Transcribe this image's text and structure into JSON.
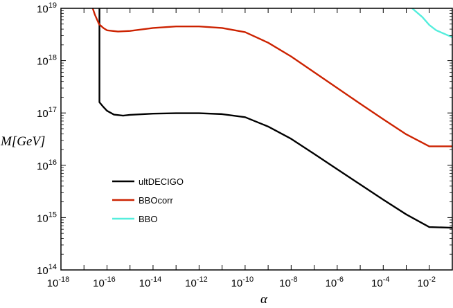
{
  "chart_data": {
    "type": "line",
    "title": "",
    "xlabel": "α",
    "ylabel": "M[GeV]",
    "xscale": "log",
    "yscale": "log",
    "xlim": [
      1e-18,
      0.1
    ],
    "ylim": [
      100000000000000.0,
      1e+19
    ],
    "grid": false,
    "legend_position": "lower-left",
    "x_tick_labels": [
      {
        "base": "10",
        "exp": "-18"
      },
      {
        "base": "10",
        "exp": "-16"
      },
      {
        "base": "10",
        "exp": "-14"
      },
      {
        "base": "10",
        "exp": "-12"
      },
      {
        "base": "10",
        "exp": "-10"
      },
      {
        "base": "10",
        "exp": "-8"
      },
      {
        "base": "10",
        "exp": "-6"
      },
      {
        "base": "10",
        "exp": "-4"
      },
      {
        "base": "10",
        "exp": "-2"
      }
    ],
    "y_tick_labels": [
      {
        "base": "10",
        "exp": "14"
      },
      {
        "base": "10",
        "exp": "15"
      },
      {
        "base": "10",
        "exp": "16"
      },
      {
        "base": "10",
        "exp": "17"
      },
      {
        "base": "10",
        "exp": "18"
      },
      {
        "base": "10",
        "exp": "19"
      }
    ],
    "series": [
      {
        "name": "ultDECIGO",
        "color": "#000000",
        "points": [
          [
            4.7e-17,
            1e+19
          ],
          [
            4.7e-17,
            1.6e+17
          ],
          [
            7e-17,
            1.3e+17
          ],
          [
            1e-16,
            1.1e+17
          ],
          [
            2e-16,
            9.3e+16
          ],
          [
            5e-16,
            8.9e+16
          ],
          [
            1e-15,
            9.2e+16
          ],
          [
            1e-14,
            9.7e+16
          ],
          [
            1e-13,
            9.9e+16
          ],
          [
            1e-12,
            9.9e+16
          ],
          [
            1e-11,
            9.5e+16
          ],
          [
            1e-10,
            8.3e+16
          ],
          [
            1e-09,
            5.5e+16
          ],
          [
            1e-08,
            3.2e+16
          ],
          [
            1e-07,
            1.65e+16
          ],
          [
            1e-06,
            8400000000000000.0
          ],
          [
            1e-05,
            4300000000000000.0
          ],
          [
            0.0001,
            2200000000000000.0
          ],
          [
            0.001,
            1150000000000000.0
          ],
          [
            0.01,
            660000000000000.0
          ],
          [
            0.1,
            640000000000000.0
          ]
        ]
      },
      {
        "name": "BBOcorr",
        "color": "#cc2200",
        "points": [
          [
            2.4e-17,
            1e+19
          ],
          [
            3e-17,
            7.5e+18
          ],
          [
            4.5e-17,
            5e+18
          ],
          [
            7e-17,
            4.2e+18
          ],
          [
            1e-16,
            3.8e+18
          ],
          [
            3e-16,
            3.6e+18
          ],
          [
            1e-15,
            3.7e+18
          ],
          [
            1e-14,
            4.2e+18
          ],
          [
            1e-13,
            4.5e+18
          ],
          [
            1e-12,
            4.5e+18
          ],
          [
            1e-11,
            4.2e+18
          ],
          [
            1e-10,
            3.5e+18
          ],
          [
            1e-09,
            2.2e+18
          ],
          [
            1e-08,
            1.2e+18
          ],
          [
            1e-07,
            6e+17
          ],
          [
            1e-06,
            3e+17
          ],
          [
            1e-05,
            1.5e+17
          ],
          [
            0.0001,
            7.6e+16
          ],
          [
            0.001,
            3.9e+16
          ],
          [
            0.01,
            2.3e+16
          ],
          [
            0.1,
            2.3e+16
          ]
        ]
      },
      {
        "name": "BBO",
        "color": "#55eedd",
        "points": [
          [
            0.0018,
            1e+19
          ],
          [
            0.005,
            6.8e+18
          ],
          [
            0.01,
            4.8e+18
          ],
          [
            0.02,
            3.8e+18
          ],
          [
            0.1,
            2.8e+18
          ]
        ]
      }
    ]
  }
}
